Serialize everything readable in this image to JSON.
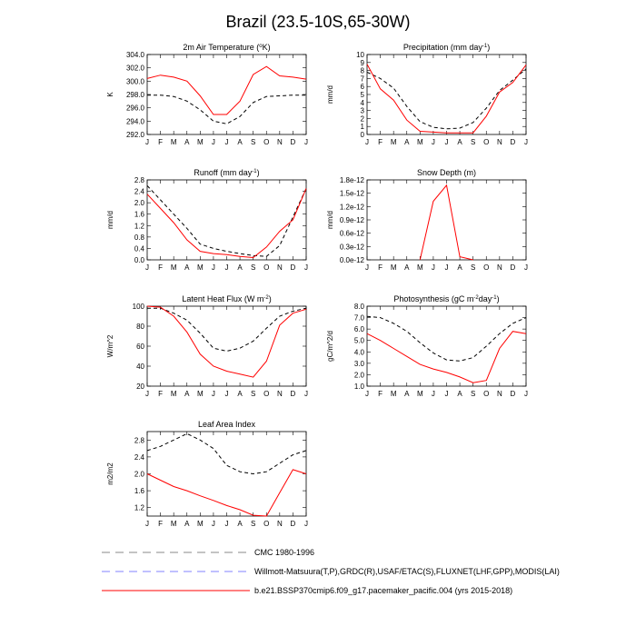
{
  "figure": {
    "title": "Brazil (23.5-10S,65-30W)"
  },
  "legend": [
    {
      "label": "CMC 1980-1996",
      "color": "#8a8a8a",
      "dash": "dashed"
    },
    {
      "label": "Willmott-Matsuura(T,P),GRDC(R),USAF/ETAC(S),FLUXNET(LHF,GPP),MODIS(LAI)",
      "color": "#8080ff",
      "dash": "dashed"
    },
    {
      "label": "b.e21.BSSP370cmip6.f09_g17.pacemaker_pacific.004 (yrs 2015-2018)",
      "color": "#ff0000",
      "dash": "solid"
    }
  ],
  "colors": {
    "observed": "#000000",
    "model": "#ff0000"
  },
  "chart_data": [
    {
      "id": "t2m",
      "type": "line",
      "title": "2m Air Temperature (°K)",
      "title_parts": {
        "pre": "2m Air Temperature (",
        "sup": "o",
        "post": "K)"
      },
      "ylabel": "K",
      "ylim": [
        292,
        304
      ],
      "yticks": [
        "292.0",
        "294.0",
        "296.0",
        "298.0",
        "300.0",
        "302.0",
        "304.0"
      ],
      "xticks": [
        "J",
        "F",
        "M",
        "A",
        "M",
        "J",
        "J",
        "A",
        "S",
        "O",
        "N",
        "D",
        "J"
      ],
      "series": [
        {
          "name": "observed",
          "style": "dashed",
          "values": [
            297.9,
            297.9,
            297.7,
            297.0,
            295.7,
            294.0,
            293.6,
            294.7,
            296.8,
            297.7,
            297.8,
            297.9,
            297.9
          ]
        },
        {
          "name": "model",
          "style": "solid",
          "values": [
            300.4,
            300.9,
            300.6,
            300.0,
            297.8,
            295.0,
            295.0,
            297.0,
            301.0,
            302.2,
            300.8,
            300.6,
            300.3
          ]
        }
      ]
    },
    {
      "id": "precip",
      "type": "line",
      "title": "Precipitation (mm day-1)",
      "title_parts": {
        "pre": "Precipitation (mm day",
        "sup": "-1",
        "post": ")"
      },
      "ylabel": "mm/d",
      "ylim": [
        0,
        10
      ],
      "yticks": [
        "0",
        "1",
        "2",
        "3",
        "4",
        "5",
        "6",
        "7",
        "8",
        "9",
        "10"
      ],
      "xticks": [
        "J",
        "F",
        "M",
        "A",
        "M",
        "J",
        "J",
        "A",
        "S",
        "O",
        "N",
        "D",
        "J"
      ],
      "series": [
        {
          "name": "observed",
          "style": "dashed",
          "values": [
            7.8,
            7.0,
            5.8,
            3.5,
            1.6,
            0.9,
            0.7,
            0.8,
            1.5,
            3.3,
            5.5,
            6.8,
            8.2
          ]
        },
        {
          "name": "model",
          "style": "solid",
          "values": [
            8.8,
            5.7,
            4.3,
            1.8,
            0.4,
            0.3,
            0.2,
            0.2,
            0.2,
            2.3,
            5.3,
            6.5,
            8.7
          ]
        }
      ]
    },
    {
      "id": "runoff",
      "type": "line",
      "title": "Runoff (mm day-1)",
      "title_parts": {
        "pre": "Runoff (mm day",
        "sup": "-1",
        "post": ")"
      },
      "ylabel": "mm/d",
      "ylim": [
        0,
        2.8
      ],
      "yticks": [
        "0.0",
        "0.4",
        "0.8",
        "1.2",
        "1.6",
        "2.0",
        "2.4",
        "2.8"
      ],
      "xticks": [
        "J",
        "F",
        "M",
        "A",
        "M",
        "J",
        "J",
        "A",
        "S",
        "O",
        "N",
        "D",
        "J"
      ],
      "series": [
        {
          "name": "observed",
          "style": "dashed",
          "values": [
            2.6,
            2.1,
            1.6,
            1.1,
            0.55,
            0.4,
            0.3,
            0.22,
            0.15,
            0.12,
            0.5,
            1.5,
            2.5
          ]
        },
        {
          "name": "model",
          "style": "solid",
          "values": [
            2.3,
            1.8,
            1.3,
            0.7,
            0.3,
            0.22,
            0.18,
            0.12,
            0.08,
            0.45,
            1.0,
            1.4,
            2.5
          ]
        }
      ]
    },
    {
      "id": "snow",
      "type": "line",
      "title": "Snow Depth (m)",
      "title_parts": {
        "pre": "Snow Depth (m)",
        "sup": "",
        "post": ""
      },
      "ylabel": "mm/d",
      "ylim": [
        0,
        1.8e-12
      ],
      "yticks": [
        "0.0e-12",
        "0.3e-12",
        "0.6e-12",
        "0.9e-12",
        "1.2e-12",
        "1.5e-12",
        "1.8e-12"
      ],
      "xticks": [
        "J",
        "F",
        "M",
        "A",
        "M",
        "J",
        "J",
        "A",
        "S",
        "O",
        "N",
        "D",
        "J"
      ],
      "series": [
        {
          "name": "model",
          "style": "solid",
          "values": [
            null,
            null,
            null,
            null,
            0,
            1.32e-12,
            1.68e-12,
            7e-14,
            0,
            null,
            null,
            null,
            null
          ]
        }
      ]
    },
    {
      "id": "lhf",
      "type": "line",
      "title": "Latent Heat Flux (W m-2)",
      "title_parts": {
        "pre": "Latent Heat Flux (W m",
        "sup": "-2",
        "post": ")"
      },
      "ylabel": "W/m^2",
      "ylim": [
        20,
        100
      ],
      "yticks": [
        "20",
        "40",
        "60",
        "80",
        "100"
      ],
      "xticks": [
        "J",
        "F",
        "M",
        "A",
        "M",
        "J",
        "J",
        "A",
        "S",
        "O",
        "N",
        "D",
        "J"
      ],
      "series": [
        {
          "name": "observed",
          "style": "dashed",
          "values": [
            98,
            98,
            93,
            86,
            73,
            58,
            55,
            58,
            65,
            78,
            90,
            95,
            98
          ]
        },
        {
          "name": "model",
          "style": "solid",
          "values": [
            100,
            99,
            90,
            74,
            52,
            40,
            35,
            32,
            29,
            45,
            81,
            93,
            97
          ]
        }
      ]
    },
    {
      "id": "gpp",
      "type": "line",
      "title": "Photosynthesis (gC m-2day-1)",
      "title_parts": {
        "pre": "Photosynthesis (gC m",
        "sup": "-2",
        "post": "day",
        "sup2": "-1",
        "post2": ")"
      },
      "ylabel": "gC/m^2/d",
      "ylim": [
        1.0,
        8.0
      ],
      "yticks": [
        "1.0",
        "2.0",
        "3.0",
        "4.0",
        "5.0",
        "6.0",
        "7.0",
        "8.0"
      ],
      "xticks": [
        "J",
        "F",
        "M",
        "A",
        "M",
        "J",
        "J",
        "A",
        "S",
        "O",
        "N",
        "D",
        "J"
      ],
      "series": [
        {
          "name": "observed",
          "style": "dashed",
          "values": [
            7.1,
            7.0,
            6.5,
            5.8,
            4.8,
            3.9,
            3.3,
            3.2,
            3.5,
            4.5,
            5.6,
            6.5,
            7.0
          ]
        },
        {
          "name": "model",
          "style": "solid",
          "values": [
            5.6,
            5.0,
            4.3,
            3.6,
            2.9,
            2.5,
            2.2,
            1.8,
            1.3,
            1.5,
            4.3,
            5.8,
            5.6
          ]
        }
      ]
    },
    {
      "id": "lai",
      "type": "line",
      "title": "Leaf Area Index",
      "title_parts": {
        "pre": "Leaf Area Index",
        "sup": "",
        "post": ""
      },
      "ylabel": "m2/m2",
      "ylim": [
        1.0,
        3.0
      ],
      "yticks": [
        "1.2",
        "1.6",
        "2.0",
        "2.4",
        "2.8"
      ],
      "xticks": [
        "J",
        "F",
        "M",
        "A",
        "M",
        "J",
        "J",
        "A",
        "S",
        "O",
        "N",
        "D",
        "J"
      ],
      "series": [
        {
          "name": "observed",
          "style": "dashed",
          "values": [
            2.55,
            2.65,
            2.8,
            2.95,
            2.8,
            2.6,
            2.2,
            2.05,
            2.0,
            2.05,
            2.25,
            2.45,
            2.55
          ]
        },
        {
          "name": "model",
          "style": "solid",
          "values": [
            2.0,
            1.85,
            1.7,
            1.6,
            1.48,
            1.37,
            1.25,
            1.15,
            1.02,
            1.0,
            1.55,
            2.1,
            2.0
          ]
        }
      ]
    }
  ]
}
